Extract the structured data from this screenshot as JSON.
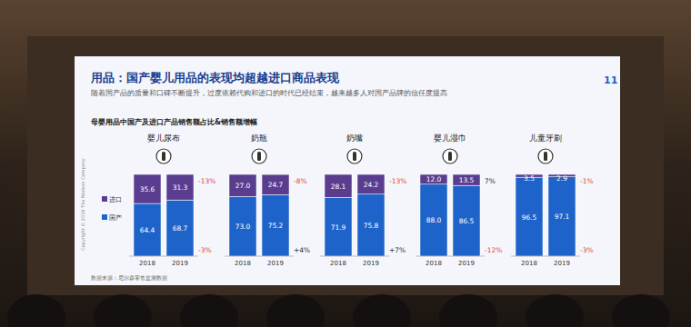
{
  "slide": {
    "title": "用品：国产婴儿用品的表现均超越进口商品表现",
    "subtitle": "随着国产品的质量和口碑不断提升，过度依赖代购和进口的时代已经结束，越来越多人对国产品牌的信任度提高",
    "chart_title": "母婴用品中国产及进口产品销售额占比&销售额增幅",
    "source": "数据来源：尼尔森零售监测数据",
    "copyright": "Copyright © 2019 The Nielsen Company",
    "page": "11"
  },
  "chart_data": [
    {
      "type": "bar",
      "title": "婴儿尿布",
      "stacked": true,
      "data_labels": true,
      "tick_labels": "x",
      "legend": "left",
      "ylim": [
        0,
        100
      ],
      "categories": [
        "2018",
        "2019"
      ],
      "series": [
        {
          "name": "进口",
          "color": "#5b3d8f",
          "values": [
            35.6,
            31.3
          ],
          "growth": "-13%"
        },
        {
          "name": "国产",
          "color": "#1e63c9",
          "values": [
            64.4,
            68.7
          ],
          "growth": "-3%"
        }
      ]
    },
    {
      "type": "bar",
      "title": "奶瓶",
      "stacked": true,
      "data_labels": true,
      "tick_labels": "x",
      "ylim": [
        0,
        100
      ],
      "categories": [
        "2018",
        "2019"
      ],
      "series": [
        {
          "name": "进口",
          "color": "#5b3d8f",
          "values": [
            27,
            24.7
          ],
          "value_labels": [
            "27.0",
            "24.7"
          ],
          "growth": "-8%"
        },
        {
          "name": "国产",
          "color": "#1e63c9",
          "values": [
            73,
            75.2
          ],
          "value_labels": [
            "73.0",
            "75.2"
          ],
          "growth": "+4%"
        }
      ]
    },
    {
      "type": "bar",
      "title": "奶嘴",
      "stacked": true,
      "data_labels": true,
      "tick_labels": "x",
      "ylim": [
        0,
        100
      ],
      "categories": [
        "2018",
        "2019"
      ],
      "series": [
        {
          "name": "进口",
          "color": "#5b3d8f",
          "values": [
            28.1,
            24.2
          ],
          "growth": "-13%"
        },
        {
          "name": "国产",
          "color": "#1e63c9",
          "values": [
            71.9,
            75.8
          ],
          "growth": "+7%"
        }
      ]
    },
    {
      "type": "bar",
      "title": "婴儿湿巾",
      "stacked": true,
      "data_labels": true,
      "tick_labels": "x",
      "ylim": [
        0,
        100
      ],
      "categories": [
        "2018",
        "2019"
      ],
      "series": [
        {
          "name": "进口",
          "color": "#5b3d8f",
          "values": [
            12,
            13.5
          ],
          "value_labels": [
            "12.0",
            "13.5"
          ],
          "growth": "7%"
        },
        {
          "name": "国产",
          "color": "#1e63c9",
          "values": [
            88,
            86.5
          ],
          "value_labels": [
            "88.0",
            "86.5"
          ],
          "growth": "-12%"
        }
      ]
    },
    {
      "type": "bar",
      "title": "儿童牙刷",
      "stacked": true,
      "data_labels": true,
      "tick_labels": "x",
      "ylim": [
        0,
        100
      ],
      "categories": [
        "2018",
        "2019"
      ],
      "series": [
        {
          "name": "进口",
          "color": "#5b3d8f",
          "values": [
            3.5,
            2.9
          ],
          "growth": "-1%"
        },
        {
          "name": "国产",
          "color": "#1e63c9",
          "values": [
            96.5,
            97.1
          ],
          "growth": "-3%"
        }
      ]
    }
  ]
}
